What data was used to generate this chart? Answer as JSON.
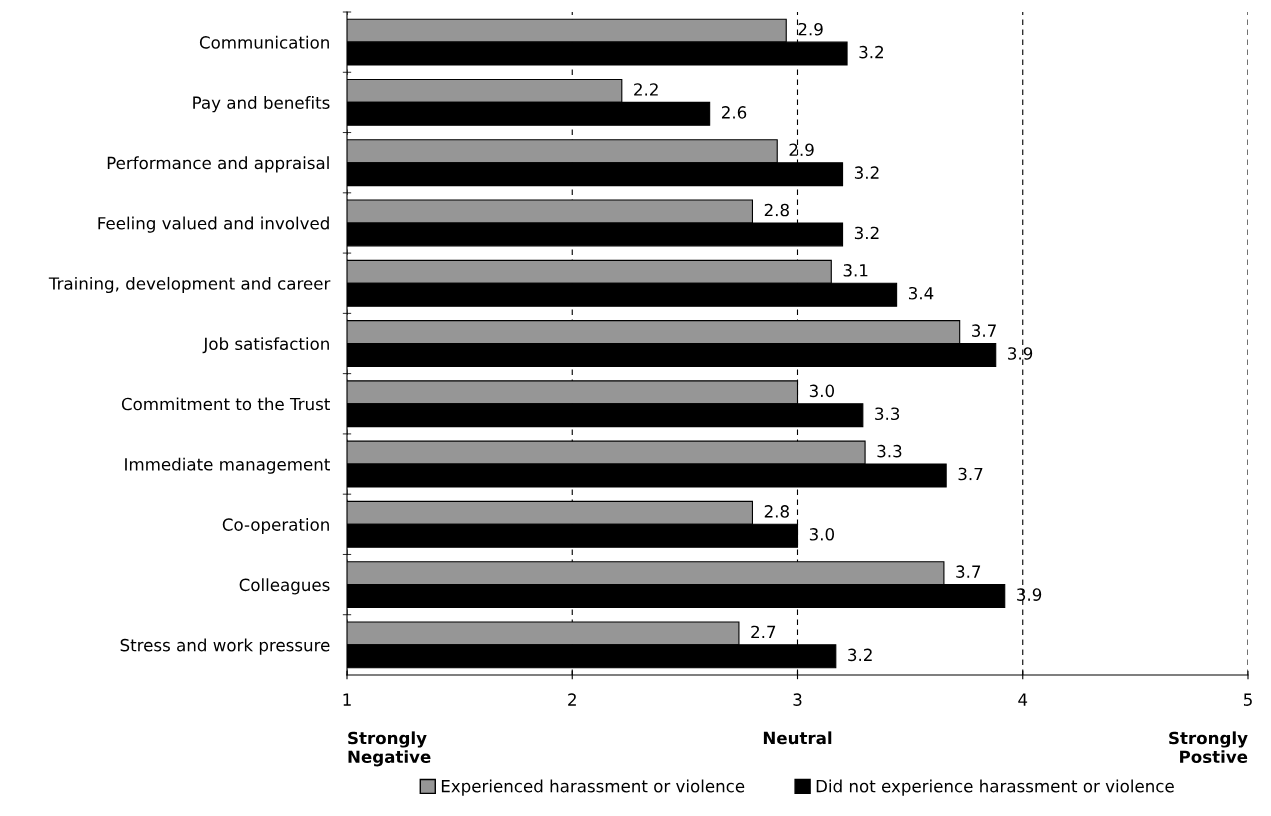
{
  "chart_data": {
    "type": "bar",
    "orientation": "horizontal",
    "categories": [
      "Communication",
      "Pay and benefits",
      "Performance and appraisal",
      "Feeling valued and involved",
      "Training, development and career",
      "Job satisfaction",
      "Commitment to the Trust",
      "Immediate management",
      "Co-operation",
      "Colleagues",
      "Stress and work pressure"
    ],
    "series": [
      {
        "name": "Experienced harassment or violence",
        "color": "#969696",
        "values": [
          2.95,
          2.22,
          2.91,
          2.8,
          3.15,
          3.72,
          3.0,
          3.3,
          2.8,
          3.65,
          2.74
        ],
        "value_labels": [
          "2.9",
          "2.2",
          "2.9",
          "2.8",
          "3.1",
          "3.7",
          "3.0",
          "3.3",
          "2.8",
          "3.7",
          "2.7"
        ]
      },
      {
        "name": "Did not experience harassment or violence",
        "color": "#000000",
        "values": [
          3.22,
          2.61,
          3.2,
          3.2,
          3.44,
          3.88,
          3.29,
          3.66,
          3.0,
          3.92,
          3.17
        ],
        "value_labels": [
          "3.2",
          "2.6",
          "3.2",
          "3.2",
          "3.4",
          "3.9",
          "3.3",
          "3.7",
          "3.0",
          "3.9",
          "3.2"
        ]
      }
    ],
    "xlim": [
      1,
      5
    ],
    "xticks": [
      1,
      2,
      3,
      4,
      5
    ],
    "grid": "x",
    "legend": "bottom",
    "annotations": [
      "Strongly\nNegative",
      "Neutral",
      "Strongly\nPostive"
    ]
  }
}
